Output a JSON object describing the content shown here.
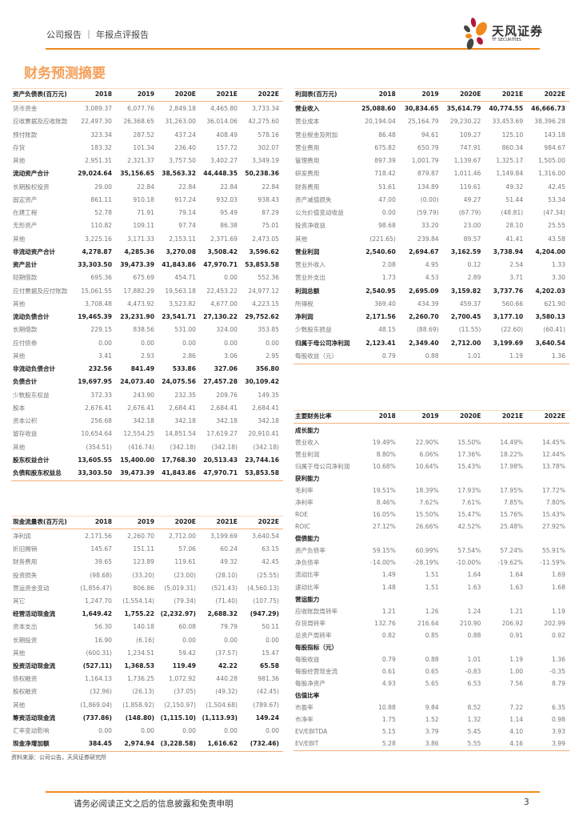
{
  "header": {
    "report_type": "公司报告 ｜ 年报点评报告",
    "brand": "天风证券",
    "brand_en": "TF SECURITIES",
    "accent": "#f08a1c"
  },
  "title": "财务预测摘要",
  "columns": [
    "2018",
    "2019",
    "2020E",
    "2021E",
    "2022E"
  ],
  "balance_sheet": {
    "header": "资产负债表(百万元)",
    "rows": [
      {
        "label": "货币资金",
        "values": [
          "3,089.37",
          "6,077.76",
          "2,849.18",
          "4,465.80",
          "3,733.34"
        ]
      },
      {
        "label": "应收票据及应收账款",
        "values": [
          "22,497.30",
          "26,368.65",
          "31,263.00",
          "36,014.06",
          "42,275.60"
        ]
      },
      {
        "label": "预付账款",
        "values": [
          "323.34",
          "287.52",
          "437.24",
          "408.49",
          "578.16"
        ]
      },
      {
        "label": "存货",
        "values": [
          "183.32",
          "101.34",
          "236.40",
          "157.72",
          "302.07"
        ]
      },
      {
        "label": "其他",
        "values": [
          "2,951.31",
          "2,321.37",
          "3,757.50",
          "3,402.27",
          "3,349.19"
        ]
      },
      {
        "label": "流动资产合计",
        "bold": true,
        "values": [
          "29,024.64",
          "35,156.65",
          "38,563.32",
          "44,448.35",
          "50,238.36"
        ]
      },
      {
        "label": "长期股权投资",
        "values": [
          "29.00",
          "22.84",
          "22.84",
          "22.84",
          "22.84"
        ]
      },
      {
        "label": "固定资产",
        "values": [
          "861.11",
          "910.18",
          "917.24",
          "932.03",
          "938.43"
        ]
      },
      {
        "label": "在建工程",
        "values": [
          "52.78",
          "71.91",
          "79.14",
          "95.49",
          "87.29"
        ]
      },
      {
        "label": "无形资产",
        "values": [
          "110.82",
          "109.11",
          "97.74",
          "86.38",
          "75.01"
        ]
      },
      {
        "label": "其他",
        "values": [
          "3,225.16",
          "3,171.33",
          "2,153.11",
          "2,371.69",
          "2,473.05"
        ]
      },
      {
        "label": "非流动资产合计",
        "bold": true,
        "values": [
          "4,278.87",
          "4,285.36",
          "3,270.08",
          "3,508.42",
          "3,596.62"
        ]
      },
      {
        "label": "资产总计",
        "bold": true,
        "values": [
          "33,303.50",
          "39,473.39",
          "41,843.86",
          "47,970.71",
          "53,853.58"
        ]
      },
      {
        "label": "短期借款",
        "values": [
          "695.36",
          "675.69",
          "454.71",
          "0.00",
          "552.36"
        ]
      },
      {
        "label": "应付票据及应付账款",
        "values": [
          "15,061.55",
          "17,882.29",
          "19,563.18",
          "22,453.22",
          "24,977.12"
        ]
      },
      {
        "label": "其他",
        "values": [
          "3,708.48",
          "4,473.92",
          "3,523.82",
          "4,677.00",
          "4,223.15"
        ]
      },
      {
        "label": "流动负债合计",
        "bold": true,
        "values": [
          "19,465.39",
          "23,231.90",
          "23,541.71",
          "27,130.22",
          "29,752.62"
        ]
      },
      {
        "label": "长期借款",
        "values": [
          "229.15",
          "838.56",
          "531.00",
          "324.00",
          "353.85"
        ]
      },
      {
        "label": "应付债券",
        "values": [
          "0.00",
          "0.00",
          "0.00",
          "0.00",
          "0.00"
        ]
      },
      {
        "label": "其他",
        "values": [
          "3.41",
          "2.93",
          "2.86",
          "3.06",
          "2.95"
        ]
      },
      {
        "label": "非流动负债合计",
        "bold": true,
        "values": [
          "232.56",
          "841.49",
          "533.86",
          "327.06",
          "356.80"
        ]
      },
      {
        "label": "负债合计",
        "bold": true,
        "values": [
          "19,697.95",
          "24,073.40",
          "24,075.56",
          "27,457.28",
          "30,109.42"
        ]
      },
      {
        "label": "少数股东权益",
        "values": [
          "372.33",
          "243.90",
          "232.35",
          "209.76",
          "149.35"
        ]
      },
      {
        "label": "股本",
        "values": [
          "2,676.41",
          "2,676.41",
          "2,684.41",
          "2,684.41",
          "2,684.41"
        ]
      },
      {
        "label": "资本公积",
        "values": [
          "256.68",
          "342.18",
          "342.18",
          "342.18",
          "342.18"
        ]
      },
      {
        "label": "留存收益",
        "values": [
          "10,654.64",
          "12,554.25",
          "14,851.54",
          "17,619.27",
          "20,910.41"
        ]
      },
      {
        "label": "其他",
        "values": [
          "(354.51)",
          "(416.74)",
          "(342.18)",
          "(342.18)",
          "(342.18)"
        ]
      },
      {
        "label": "股东权益合计",
        "bold": true,
        "values": [
          "13,605.55",
          "15,400.00",
          "17,768.30",
          "20,513.43",
          "23,744.16"
        ]
      },
      {
        "label": "负债和股东权益总",
        "bold": true,
        "values": [
          "33,303.50",
          "39,473.39",
          "41,843.86",
          "47,970.71",
          "53,853.58"
        ]
      }
    ]
  },
  "income_statement": {
    "header": "利润表(百万元)",
    "rows": [
      {
        "label": "营业收入",
        "bold": true,
        "values": [
          "25,088.60",
          "30,834.65",
          "35,614.79",
          "40,774.55",
          "46,666.73"
        ]
      },
      {
        "label": "营业成本",
        "values": [
          "20,194.04",
          "25,164.79",
          "29,230.22",
          "33,453.69",
          "38,396.28"
        ]
      },
      {
        "label": "营业税金及附加",
        "values": [
          "86.48",
          "94.61",
          "109.27",
          "125.10",
          "143.18"
        ]
      },
      {
        "label": "营业费用",
        "values": [
          "675.82",
          "650.79",
          "747.91",
          "860.34",
          "984.67"
        ]
      },
      {
        "label": "管理费用",
        "values": [
          "897.39",
          "1,001.79",
          "1,139.67",
          "1,325.17",
          "1,505.00"
        ]
      },
      {
        "label": "研发费用",
        "values": [
          "718.42",
          "879.87",
          "1,011.46",
          "1,149.84",
          "1,316.00"
        ]
      },
      {
        "label": "财务费用",
        "values": [
          "51.61",
          "134.89",
          "119.61",
          "49.32",
          "42.45"
        ]
      },
      {
        "label": "资产减值损失",
        "values": [
          "47.00",
          "(0.00)",
          "49.27",
          "51.44",
          "53.34"
        ]
      },
      {
        "label": "公允价值变动收益",
        "values": [
          "0.00",
          "(59.79)",
          "(67.79)",
          "(48.81)",
          "(47.34)"
        ]
      },
      {
        "label": "投资净收益",
        "values": [
          "98.68",
          "33.20",
          "23.00",
          "28.10",
          "25.55"
        ]
      },
      {
        "label": "其他",
        "values": [
          "(221.65)",
          "239.84",
          "89.57",
          "41.41",
          "43.58"
        ]
      },
      {
        "label": "营业利润",
        "bold": true,
        "values": [
          "2,540.60",
          "2,694.67",
          "3,162.59",
          "3,738.94",
          "4,204.00"
        ]
      },
      {
        "label": "营业外收入",
        "values": [
          "2.08",
          "4.95",
          "0.12",
          "2.54",
          "1.33"
        ]
      },
      {
        "label": "营业外支出",
        "values": [
          "1.73",
          "4.53",
          "2.89",
          "3.71",
          "3.30"
        ]
      },
      {
        "label": "利润总额",
        "bold": true,
        "values": [
          "2,540.95",
          "2,695.09",
          "3,159.82",
          "3,737.76",
          "4,202.03"
        ]
      },
      {
        "label": "所得税",
        "values": [
          "369.40",
          "434.39",
          "459.37",
          "560.66",
          "621.90"
        ]
      },
      {
        "label": "净利润",
        "bold": true,
        "values": [
          "2,171.56",
          "2,260.70",
          "2,700.45",
          "3,177.10",
          "3,580.13"
        ]
      },
      {
        "label": "少数股东损益",
        "values": [
          "48.15",
          "(88.69)",
          "(11.55)",
          "(22.60)",
          "(60.41)"
        ]
      },
      {
        "label": "归属于母公司净利润",
        "bold": true,
        "values": [
          "2,123.41",
          "2,349.40",
          "2,712.00",
          "3,199.69",
          "3,640.54"
        ]
      },
      {
        "label": "每股收益（元）",
        "values": [
          "0.79",
          "0.88",
          "1.01",
          "1.19",
          "1.36"
        ]
      }
    ]
  },
  "cash_flow": {
    "header": "现金流量表(百万元)",
    "rows": [
      {
        "label": "净利润",
        "values": [
          "2,171.56",
          "2,260.70",
          "2,712.00",
          "3,199.69",
          "3,640.54"
        ]
      },
      {
        "label": "折旧摊销",
        "values": [
          "145.67",
          "151.11",
          "57.06",
          "60.24",
          "63.15"
        ]
      },
      {
        "label": "财务费用",
        "values": [
          "39.65",
          "123.89",
          "119.61",
          "49.32",
          "42.45"
        ]
      },
      {
        "label": "投资损失",
        "values": [
          "(98.68)",
          "(33.20)",
          "(23.00)",
          "(28.10)",
          "(25.55)"
        ]
      },
      {
        "label": "营运资金变动",
        "values": [
          "(1,856.47)",
          "806.86",
          "(5,019.31)",
          "(521.43)",
          "(4,560.13)"
        ]
      },
      {
        "label": "其它",
        "values": [
          "1,247.70",
          "(1,554.14)",
          "(79.34)",
          "(71.40)",
          "(107.75)"
        ]
      },
      {
        "label": "经营活动现金流",
        "bold": true,
        "values": [
          "1,649.42",
          "1,755.22",
          "(2,232.97)",
          "2,688.32",
          "(947.29)"
        ]
      },
      {
        "label": "资本支出",
        "values": [
          "56.30",
          "140.18",
          "60.08",
          "79.79",
          "50.11"
        ]
      },
      {
        "label": "长期投资",
        "values": [
          "16.90",
          "(6.16)",
          "0.00",
          "0.00",
          "0.00"
        ]
      },
      {
        "label": "其他",
        "values": [
          "(600.31)",
          "1,234.51",
          "59.42",
          "(37.57)",
          "15.47"
        ]
      },
      {
        "label": "投资活动现金流",
        "bold": true,
        "values": [
          "(527.11)",
          "1,368.53",
          "119.49",
          "42.22",
          "65.58"
        ]
      },
      {
        "label": "债权融资",
        "values": [
          "1,164.13",
          "1,736.25",
          "1,072.92",
          "440.28",
          "981.36"
        ]
      },
      {
        "label": "股权融资",
        "values": [
          "(32.96)",
          "(26.13)",
          "(37.05)",
          "(49.32)",
          "(42.45)"
        ]
      },
      {
        "label": "其他",
        "values": [
          "(1,869.04)",
          "(1,858.92)",
          "(2,150.97)",
          "(1,504.68)",
          "(789.67)"
        ]
      },
      {
        "label": "筹资活动现金流",
        "bold": true,
        "values": [
          "(737.86)",
          "(148.80)",
          "(1,115.10)",
          "(1,113.93)",
          "149.24"
        ]
      },
      {
        "label": "汇率变动影响",
        "values": [
          "0.00",
          "0.00",
          "0.00",
          "0.00",
          "0.00"
        ]
      },
      {
        "label": "现金净增加额",
        "bold": true,
        "values": [
          "384.45",
          "2,974.94",
          "(3,228.58)",
          "1,616.62",
          "(732.46)"
        ]
      }
    ]
  },
  "ratios": {
    "header": "主要财务比率",
    "rows": [
      {
        "label": "成长能力",
        "bold": true,
        "values": []
      },
      {
        "label": "营业收入",
        "values": [
          "19.49%",
          "22.90%",
          "15.50%",
          "14.49%",
          "14.45%"
        ]
      },
      {
        "label": "营业利润",
        "values": [
          "8.80%",
          "6.06%",
          "17.36%",
          "18.22%",
          "12.44%"
        ]
      },
      {
        "label": "归属于母公司净利润",
        "values": [
          "10.68%",
          "10.64%",
          "15.43%",
          "17.98%",
          "13.78%"
        ]
      },
      {
        "label": "获利能力",
        "bold": true,
        "values": []
      },
      {
        "label": "毛利率",
        "values": [
          "19.51%",
          "18.39%",
          "17.93%",
          "17.95%",
          "17.72%"
        ]
      },
      {
        "label": "净利率",
        "values": [
          "8.46%",
          "7.62%",
          "7.61%",
          "7.85%",
          "7.80%"
        ]
      },
      {
        "label": "ROE",
        "values": [
          "16.05%",
          "15.50%",
          "15.47%",
          "15.76%",
          "15.43%"
        ]
      },
      {
        "label": "ROIC",
        "values": [
          "27.12%",
          "26.66%",
          "42.52%",
          "25.48%",
          "27.92%"
        ]
      },
      {
        "label": "偿债能力",
        "bold": true,
        "values": []
      },
      {
        "label": "资产负债率",
        "values": [
          "59.15%",
          "60.99%",
          "57.54%",
          "57.24%",
          "55.91%"
        ]
      },
      {
        "label": "净负债率",
        "values": [
          "-14.00%",
          "-28.19%",
          "-10.00%",
          "-19.62%",
          "-11.59%"
        ]
      },
      {
        "label": "流动比率",
        "values": [
          "1.49",
          "1.51",
          "1.64",
          "1.64",
          "1.69"
        ]
      },
      {
        "label": "速动比率",
        "values": [
          "1.48",
          "1.51",
          "1.63",
          "1.63",
          "1.68"
        ]
      },
      {
        "label": "营运能力",
        "bold": true,
        "values": []
      },
      {
        "label": "应收账款周转率",
        "values": [
          "1.21",
          "1.26",
          "1.24",
          "1.21",
          "1.19"
        ]
      },
      {
        "label": "存货周转率",
        "values": [
          "132.76",
          "216.64",
          "210.90",
          "206.92",
          "202.99"
        ]
      },
      {
        "label": "总资产周转率",
        "values": [
          "0.82",
          "0.85",
          "0.88",
          "0.91",
          "0.92"
        ]
      },
      {
        "label": "每股指标（元）",
        "bold": true,
        "values": []
      },
      {
        "label": "每股收益",
        "values": [
          "0.79",
          "0.88",
          "1.01",
          "1.19",
          "1.36"
        ]
      },
      {
        "label": "每股经营现金流",
        "values": [
          "0.61",
          "0.65",
          "-0.83",
          "1.00",
          "-0.35"
        ]
      },
      {
        "label": "每股净资产",
        "values": [
          "4.93",
          "5.65",
          "6.53",
          "7.56",
          "8.79"
        ]
      },
      {
        "label": "估值比率",
        "bold": true,
        "values": []
      },
      {
        "label": "市盈率",
        "values": [
          "10.88",
          "9.84",
          "8.52",
          "7.22",
          "6.35"
        ]
      },
      {
        "label": "市净率",
        "values": [
          "1.75",
          "1.52",
          "1.32",
          "1.14",
          "0.98"
        ]
      },
      {
        "label": "EV/EBITDA",
        "values": [
          "5.15",
          "3.79",
          "5.45",
          "4.10",
          "3.93"
        ]
      },
      {
        "label": "EV/EBIT",
        "values": [
          "5.28",
          "3.86",
          "5.55",
          "4.16",
          "3.99"
        ]
      }
    ]
  },
  "source": "资料来源：公司公告，天风证券研究所",
  "footer": {
    "disclaimer": "请务必阅读正文之后的信息披露和免责申明",
    "page": "3"
  }
}
